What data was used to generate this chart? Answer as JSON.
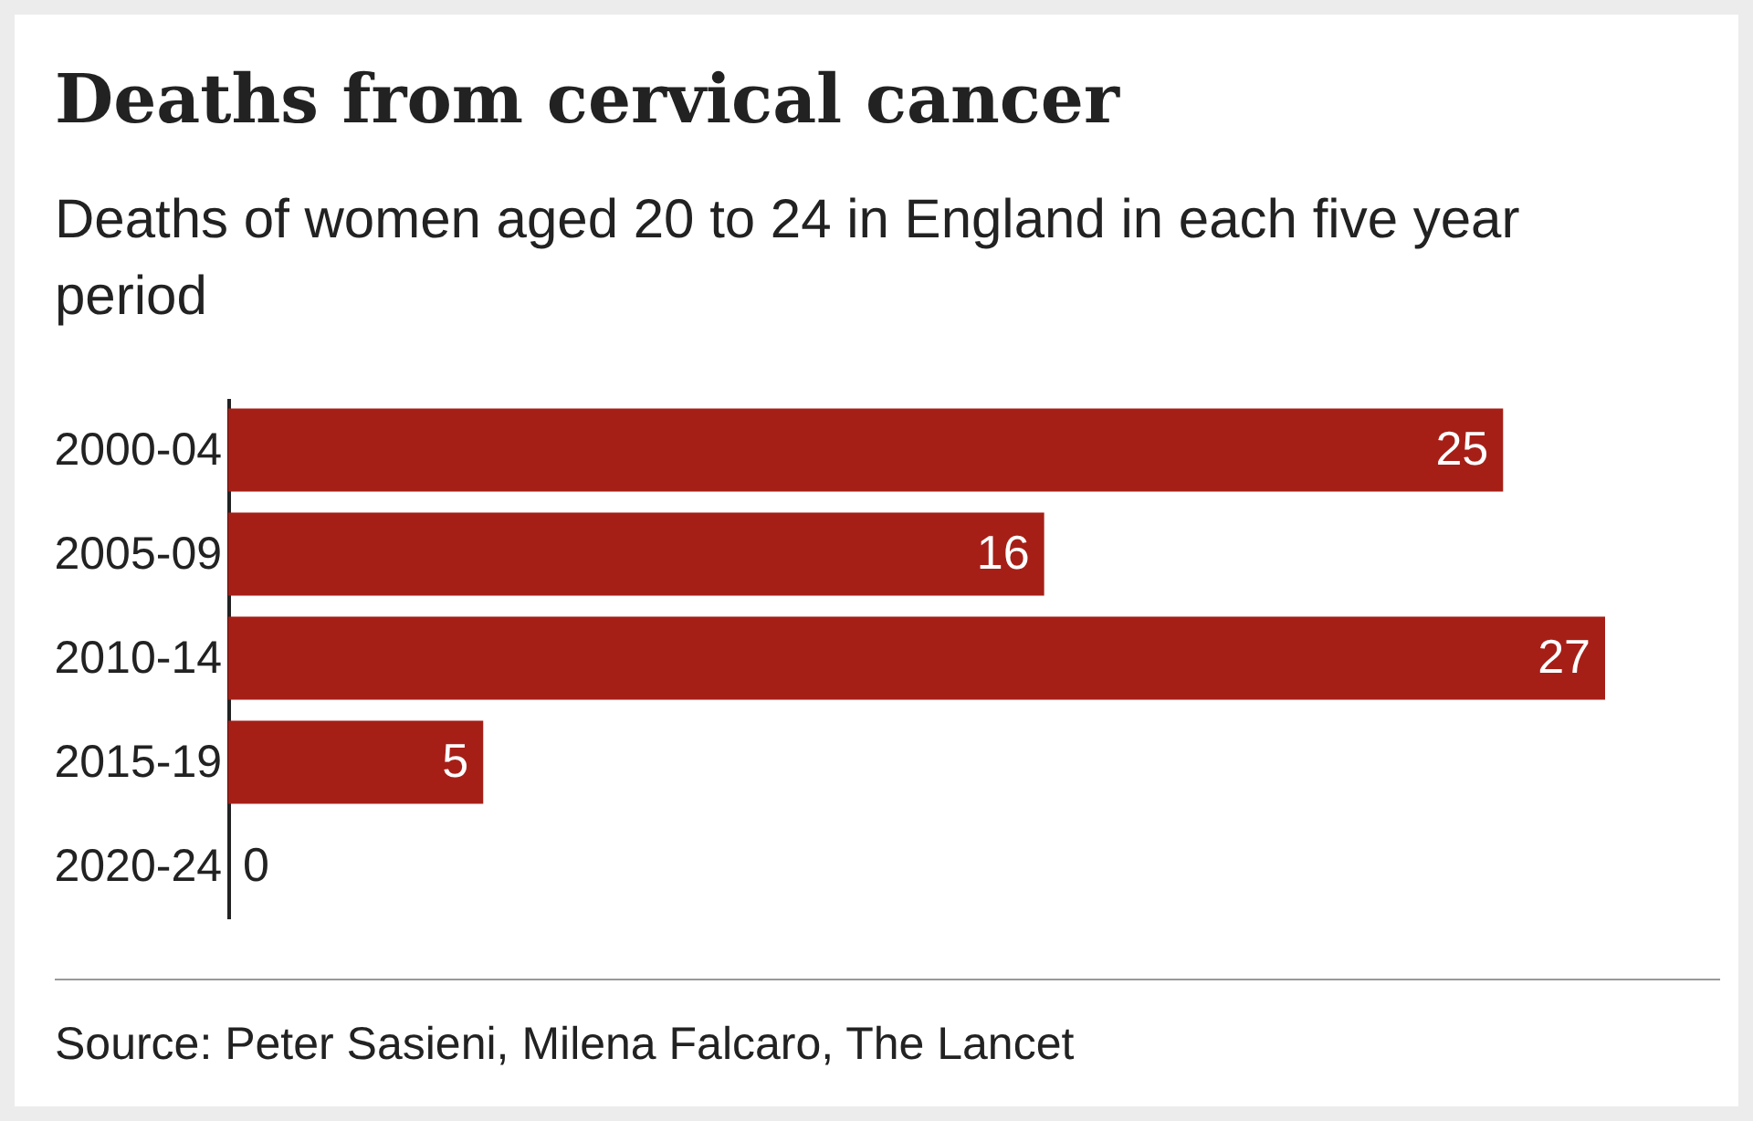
{
  "chart_data": {
    "type": "bar",
    "orientation": "horizontal",
    "title": "Deaths from cervical cancer",
    "subtitle": "Deaths of women aged 20 to 24 in England in each five year period",
    "categories": [
      "2000-04",
      "2005-09",
      "2010-14",
      "2015-19",
      "2020-24"
    ],
    "values": [
      25,
      16,
      27,
      5,
      0
    ],
    "color": "#a61f17",
    "data_labels": true,
    "grid": false,
    "annotations": [
      "Source: Peter Sasieni, Milena Falcaro, The Lancet"
    ]
  }
}
